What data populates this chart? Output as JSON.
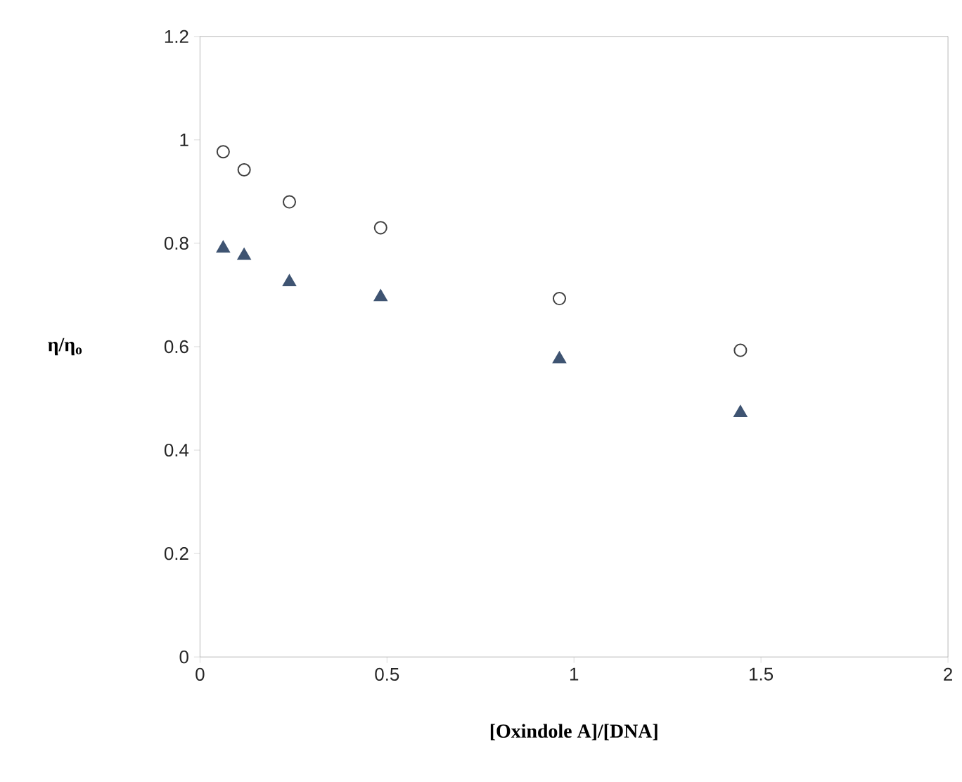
{
  "chart_data": {
    "type": "scatter",
    "xlabel": "[Oxindole A]/[DNA]",
    "ylabel": "η/η$_{o}$",
    "xlim": [
      0,
      2
    ],
    "ylim": [
      0,
      1.2
    ],
    "xticks": [
      0,
      0.5,
      1,
      1.5,
      2
    ],
    "yticks": [
      0,
      0.2,
      0.4,
      0.6,
      0.8,
      1,
      1.2
    ],
    "grid": false,
    "series": [
      {
        "color": "#404040",
        "marker": "circle",
        "x": [
          0.062,
          0.118,
          0.239,
          0.483,
          0.961,
          1.445
        ],
        "values": [
          0.977,
          0.942,
          0.88,
          0.83,
          0.693,
          0.593
        ]
      },
      {
        "color": "#3f5472",
        "marker": "triangle",
        "x": [
          0.062,
          0.118,
          0.239,
          0.483,
          0.961,
          1.445
        ],
        "values": [
          0.79,
          0.776,
          0.725,
          0.696,
          0.576,
          0.472
        ]
      }
    ]
  }
}
